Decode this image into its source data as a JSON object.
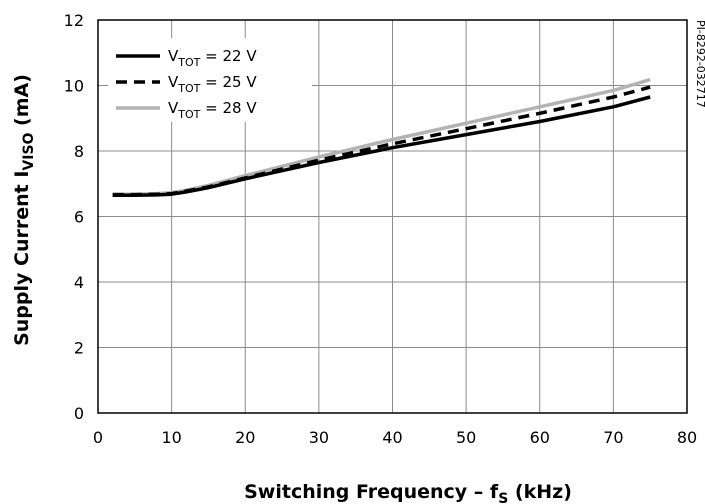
{
  "chart_data": {
    "type": "line",
    "xlabel": "Switching Frequency – f",
    "xlabel_sub": "S",
    "xlabel_unit": " (kHz)",
    "ylabel": "Supply Current I",
    "ylabel_sub": "VISO",
    "ylabel_unit": " (mA)",
    "xlim": [
      0,
      80
    ],
    "ylim": [
      0,
      12
    ],
    "xticks": [
      0,
      10,
      20,
      30,
      40,
      50,
      60,
      70,
      80
    ],
    "yticks": [
      0,
      2,
      4,
      6,
      8,
      10,
      12
    ],
    "grid": true,
    "legend_position": "top-left",
    "side_note": "PI-8292-032717",
    "series": [
      {
        "name": "V",
        "name_sub": "TOT",
        "name_rest": " = 22 V",
        "color": "#000000",
        "dash": "solid",
        "x": [
          2,
          5,
          8,
          10,
          12,
          15,
          20,
          30,
          40,
          50,
          60,
          70,
          75
        ],
        "y": [
          6.65,
          6.65,
          6.66,
          6.68,
          6.75,
          6.88,
          7.15,
          7.65,
          8.1,
          8.5,
          8.9,
          9.35,
          9.65
        ]
      },
      {
        "name": "V",
        "name_sub": "TOT",
        "name_rest": " = 25 V",
        "color": "#000000",
        "dash": "dashed",
        "x": [
          2,
          5,
          8,
          10,
          12,
          15,
          20,
          30,
          40,
          50,
          60,
          70,
          75
        ],
        "y": [
          6.67,
          6.67,
          6.68,
          6.7,
          6.78,
          6.9,
          7.18,
          7.72,
          8.22,
          8.68,
          9.15,
          9.65,
          9.95
        ]
      },
      {
        "name": "V",
        "name_sub": "TOT",
        "name_rest": " = 28 V",
        "color": "#b3b3b3",
        "dash": "solid",
        "x": [
          2,
          5,
          8,
          10,
          12,
          15,
          20,
          30,
          40,
          50,
          60,
          70,
          75
        ],
        "y": [
          6.68,
          6.68,
          6.7,
          6.73,
          6.8,
          6.95,
          7.25,
          7.82,
          8.35,
          8.85,
          9.35,
          9.85,
          10.18
        ]
      }
    ]
  }
}
